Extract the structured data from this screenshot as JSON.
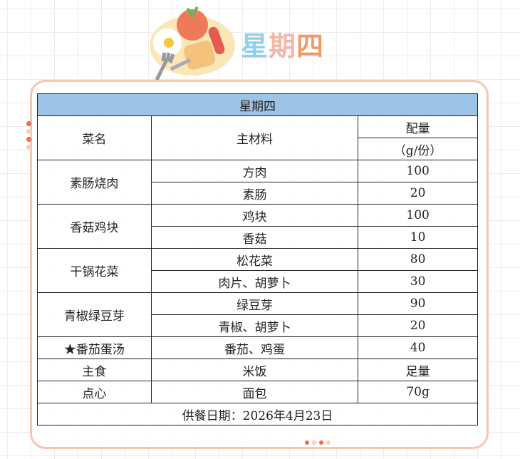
{
  "banner": {
    "title_parts": [
      "星",
      "期",
      "四"
    ],
    "title_colors": [
      "#8fd0ee",
      "#f1b8aa",
      "#f09a6a"
    ]
  },
  "table": {
    "title": "星期四",
    "headers": {
      "dish": "菜名",
      "ingredient": "主材料",
      "amount": "配量",
      "unit": "（g/份）"
    },
    "dishes": [
      {
        "name": "素肠烧肉",
        "items": [
          {
            "ingredient": "方肉",
            "amount": "100"
          },
          {
            "ingredient": "素肠",
            "amount": "20"
          }
        ]
      },
      {
        "name": "香菇鸡块",
        "items": [
          {
            "ingredient": "鸡块",
            "amount": "100"
          },
          {
            "ingredient": "香菇",
            "amount": "10"
          }
        ]
      },
      {
        "name": "干锅花菜",
        "items": [
          {
            "ingredient": "松花菜",
            "amount": "80"
          },
          {
            "ingredient": "肉片、胡萝卜",
            "amount": "30"
          }
        ]
      },
      {
        "name": "青椒绿豆芽",
        "items": [
          {
            "ingredient": "绿豆芽",
            "amount": "90"
          },
          {
            "ingredient": "青椒、胡萝卜",
            "amount": "20"
          }
        ]
      },
      {
        "name": "★番茄蛋汤",
        "items": [
          {
            "ingredient": "番茄、鸡蛋",
            "amount": "40"
          }
        ]
      },
      {
        "name": "主食",
        "items": [
          {
            "ingredient": "米饭",
            "amount": "足量"
          }
        ]
      },
      {
        "name": "点心",
        "items": [
          {
            "ingredient": "面包",
            "amount": "70g"
          }
        ]
      }
    ],
    "footer": "供餐日期：2026年4月23日"
  },
  "colors": {
    "header_bg": "#9dc3e6",
    "frame": "#f6c7b0"
  }
}
